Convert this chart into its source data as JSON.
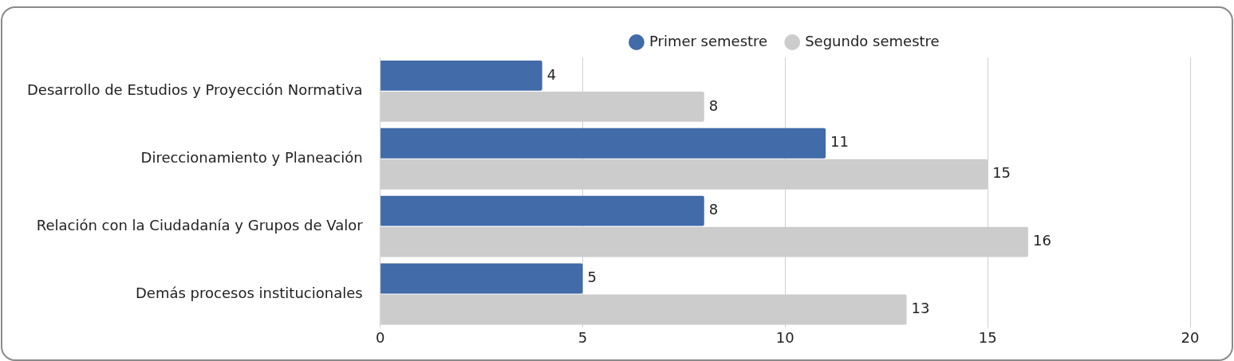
{
  "chart_data": {
    "type": "bar",
    "orientation": "horizontal",
    "categories": [
      "Desarrollo de Estudios y Proyección Normativa",
      "Direccionamiento y Planeación",
      "Relación con la Ciudadanía y Grupos de Valor",
      "Demás procesos institucionales"
    ],
    "series": [
      {
        "name": "Primer semestre",
        "color": "#416ba9",
        "values": [
          4,
          11,
          8,
          5
        ]
      },
      {
        "name": "Segundo semestre",
        "color": "#cccccc",
        "values": [
          8,
          15,
          16,
          13
        ]
      }
    ],
    "xlim": [
      0,
      20
    ],
    "xticks": [
      0,
      5,
      10,
      15,
      20
    ],
    "grid": "x",
    "legend": "top",
    "data_labels": true
  }
}
